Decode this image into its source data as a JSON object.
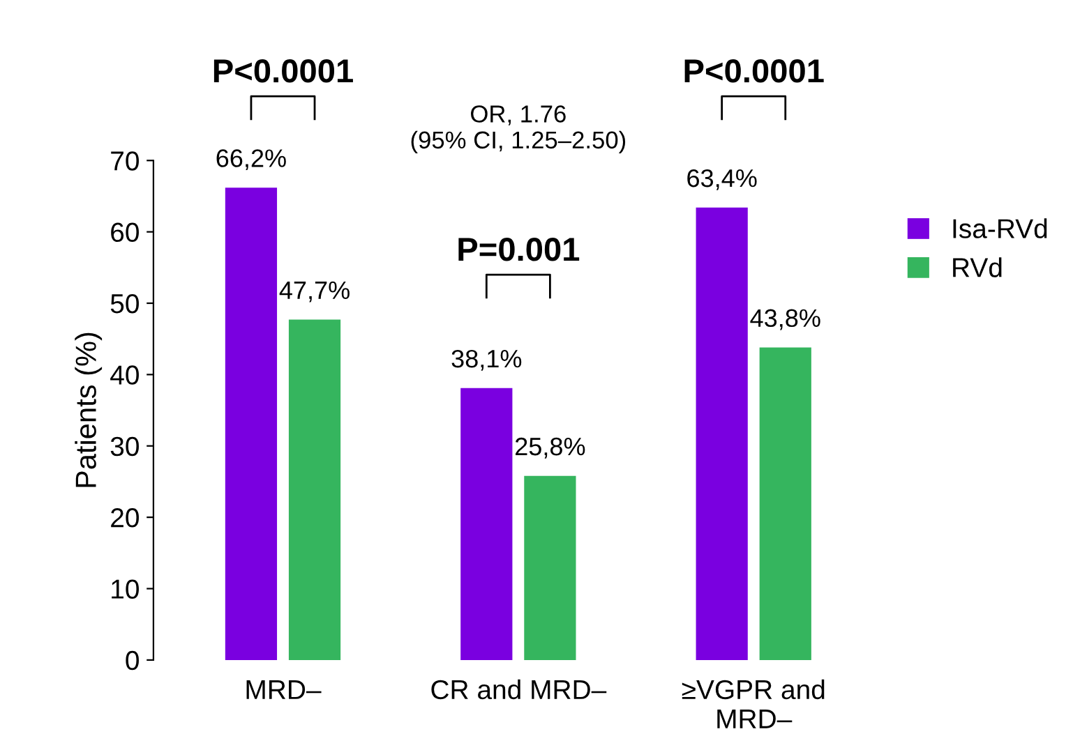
{
  "chart_data": {
    "type": "bar",
    "ylabel": "Patients (%)",
    "categories": [
      "MRD–",
      "CR and MRD–",
      "≥VGPR and\nMRD–"
    ],
    "series": [
      {
        "name": "Isa-RVd",
        "color": "#7a00e0",
        "values": [
          66.2,
          38.1,
          63.4
        ],
        "value_labels": [
          "66,2%",
          "38,1%",
          "63,4%"
        ]
      },
      {
        "name": "RVd",
        "color": "#35b55e",
        "values": [
          47.7,
          25.8,
          43.8
        ],
        "value_labels": [
          "47,7%",
          "25,8%",
          "43,8%"
        ]
      }
    ],
    "ylim": [
      0,
      70
    ],
    "yticks": [
      0,
      10,
      20,
      30,
      40,
      50,
      60,
      70
    ],
    "grid": false,
    "legend": "right",
    "annotations": [
      "P<0.0001",
      "P=0.001",
      "P<0.0001",
      "OR, 1.76\n(95% CI, 1.25–2.50)"
    ]
  }
}
